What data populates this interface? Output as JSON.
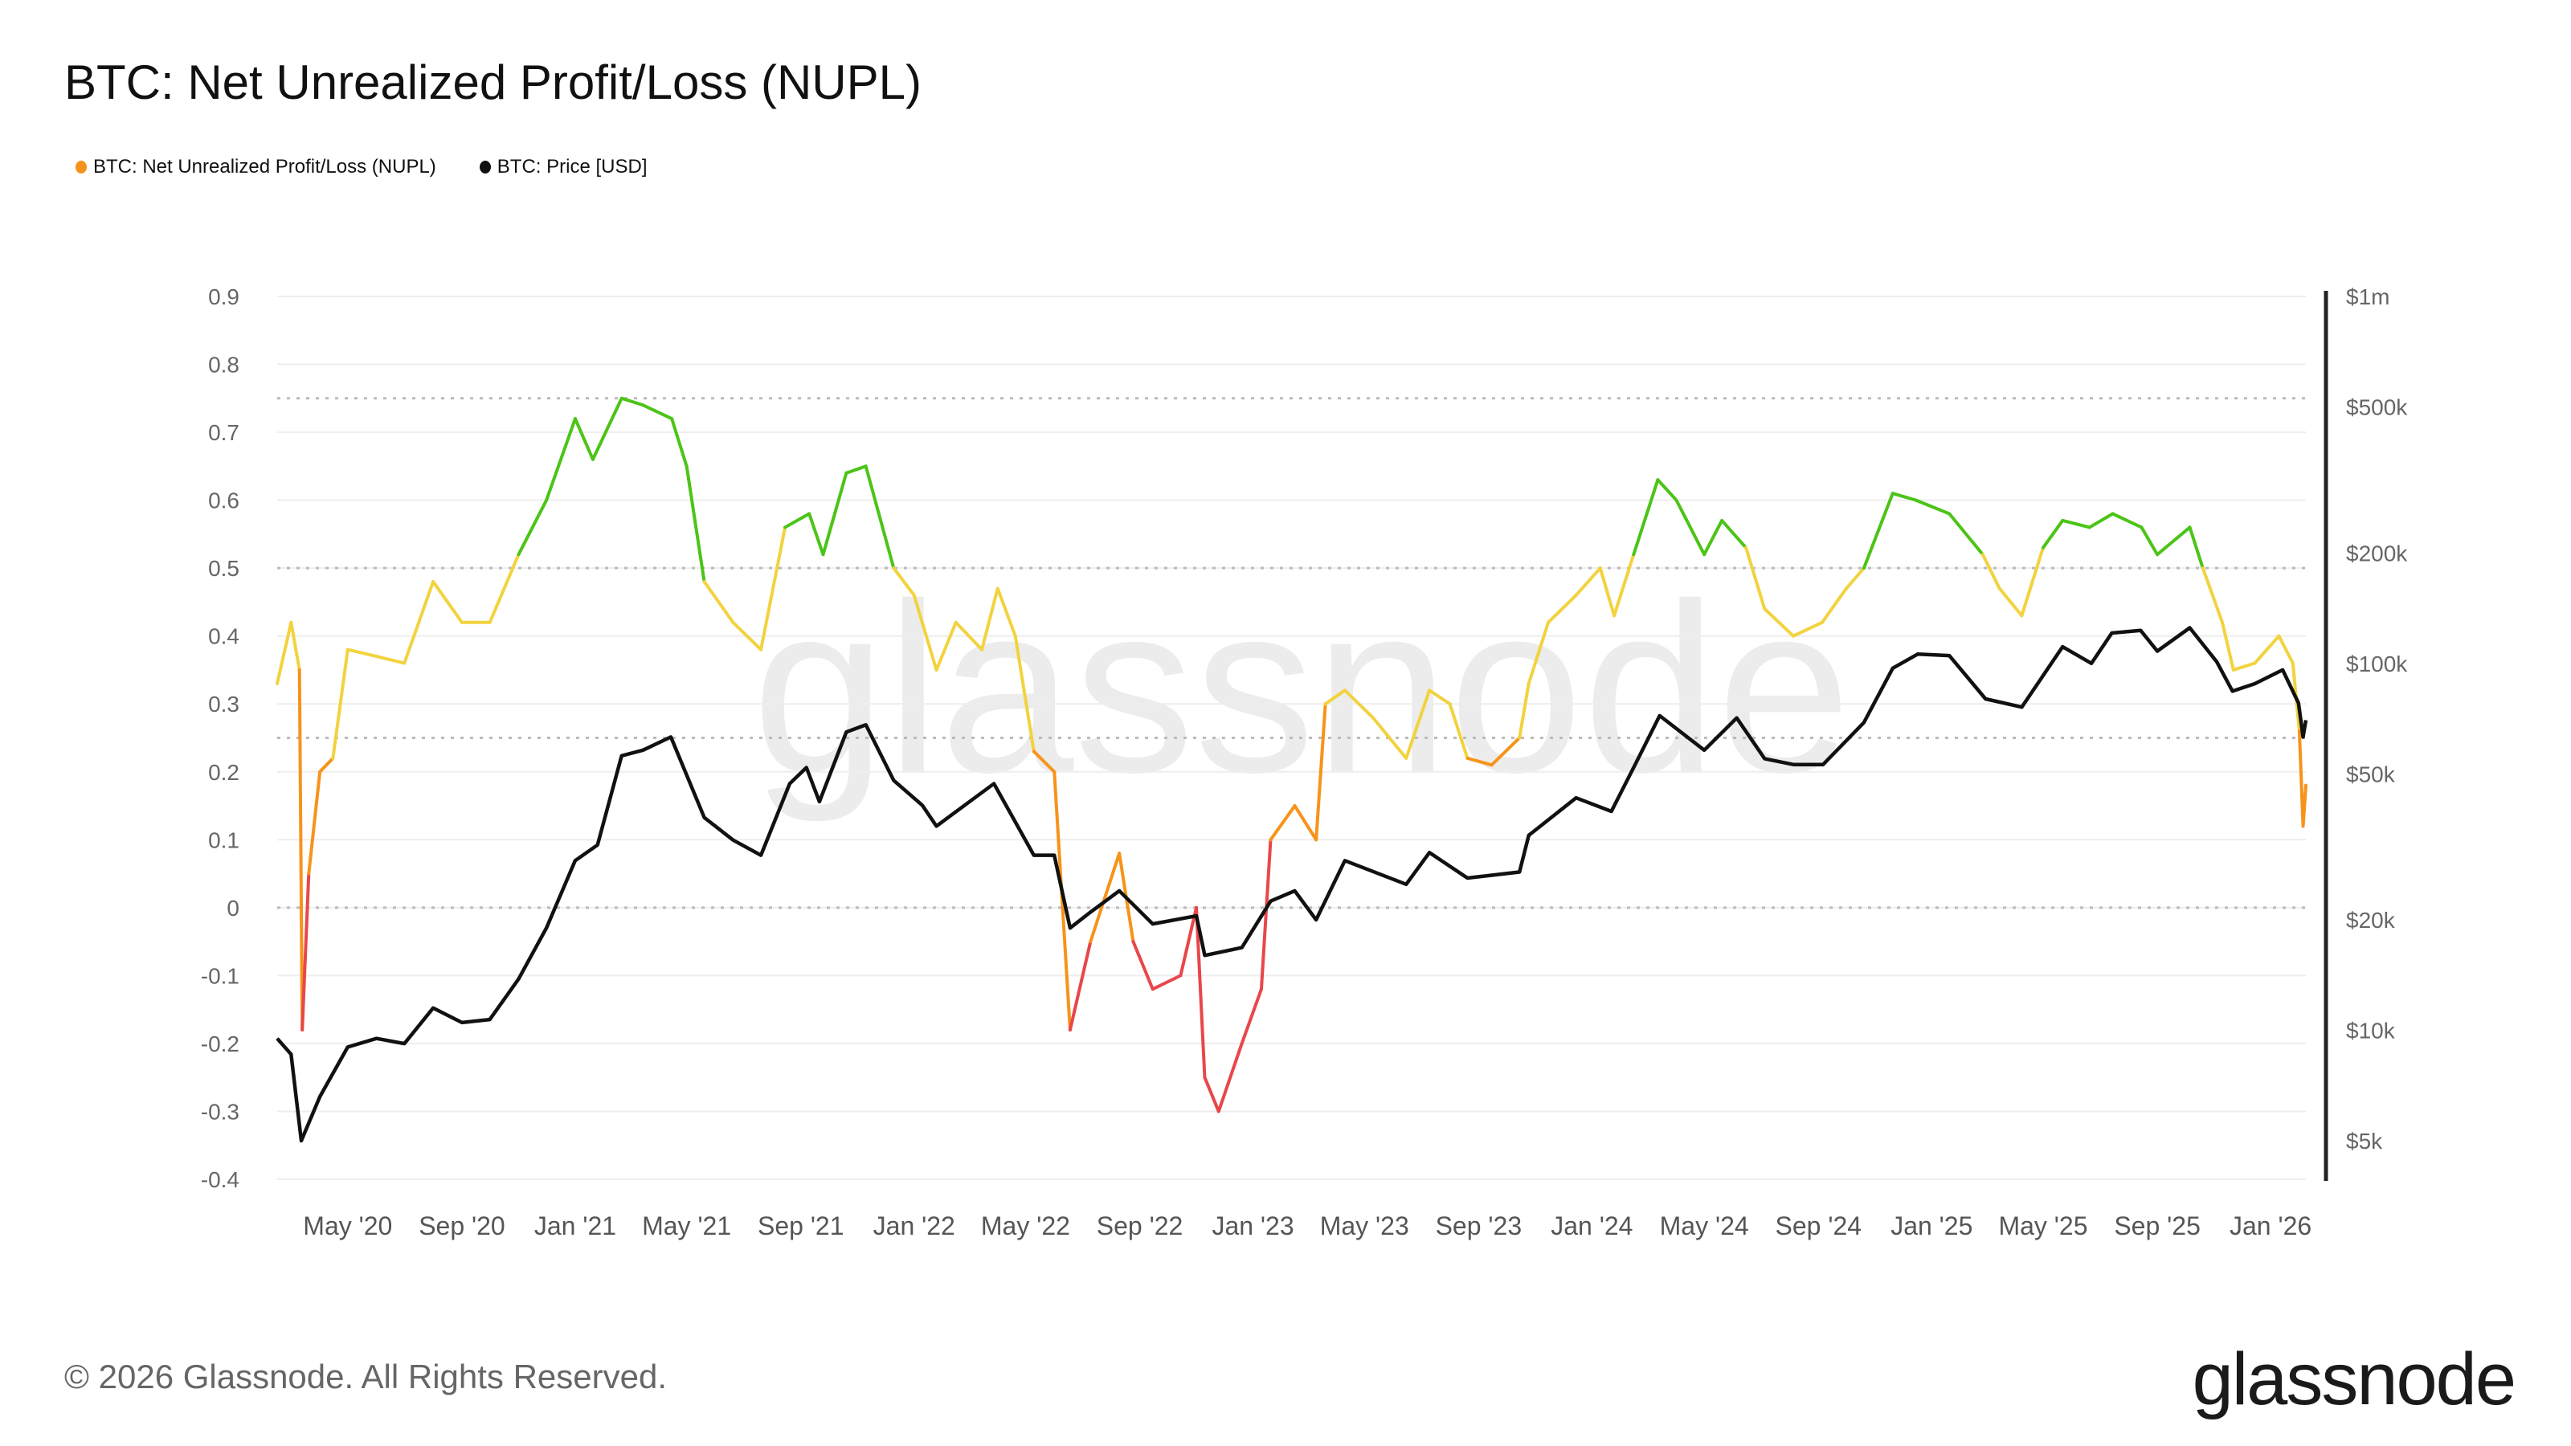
{
  "title": "BTC: Net Unrealized Profit/Loss (NUPL)",
  "legend": [
    {
      "label": "BTC: Net Unrealized Profit/Loss (NUPL)",
      "color": "#f7931a"
    },
    {
      "label": "BTC: Price [USD]",
      "color": "#111111"
    }
  ],
  "footer": "© 2026 Glassnode. All Rights Reserved.",
  "logo": "glassnode",
  "watermark": "glassnode",
  "chart_data": {
    "type": "line",
    "title": "BTC: Net Unrealized Profit/Loss (NUPL)",
    "xlim": [
      "2020-02-15",
      "2026-02-08"
    ],
    "x_ticks": [
      "May '20",
      "Sep '20",
      "Jan '21",
      "May '21",
      "Sep '21",
      "Jan '22",
      "May '22",
      "Sep '22",
      "Jan '23",
      "May '23",
      "Sep '23",
      "Jan '24",
      "May '24",
      "Sep '24",
      "Jan '25",
      "May '25",
      "Sep '25",
      "Jan '26"
    ],
    "x_tick_dates": [
      "2020-05-01",
      "2020-09-01",
      "2021-01-01",
      "2021-05-01",
      "2021-09-01",
      "2022-01-01",
      "2022-05-01",
      "2022-09-01",
      "2023-01-01",
      "2023-05-01",
      "2023-09-01",
      "2024-01-01",
      "2024-05-01",
      "2024-09-01",
      "2025-01-01",
      "2025-05-01",
      "2025-09-01",
      "2026-01-01"
    ],
    "y_left": {
      "ylim": [
        -0.4,
        0.9
      ],
      "ticks": [
        "0.9",
        "0.8",
        "0.7",
        "0.6",
        "0.5",
        "0.4",
        "0.3",
        "0.2",
        "0.1",
        "0",
        "-0.1",
        "-0.2",
        "-0.3",
        "-0.4"
      ],
      "tick_values": [
        0.9,
        0.8,
        0.7,
        0.6,
        0.5,
        0.4,
        0.3,
        0.2,
        0.1,
        0,
        -0.1,
        -0.2,
        -0.3,
        -0.4
      ]
    },
    "y_right": {
      "scale": "log",
      "ylim": [
        4500,
        1000000
      ],
      "ticks": [
        "$1m",
        "$500k",
        "$200k",
        "$100k",
        "$50k",
        "$20k",
        "$10k",
        "$5k"
      ],
      "tick_values": [
        1000000,
        500000,
        200000,
        100000,
        50000,
        20000,
        10000,
        5000
      ]
    },
    "reference_lines": [
      0.75,
      0.5,
      0.25,
      0
    ],
    "grid": true,
    "legend_position": "top-left",
    "zone_colors": {
      "capitulation": "#e8474a",
      "hope_fear": "#f7931a",
      "optimism_anxiety": "#f2d33f",
      "belief_denial": "#4cc417",
      "euphoria_greed": "#3b82f6"
    },
    "series": [
      {
        "name": "BTC: Net Unrealized Profit/Loss (NUPL)",
        "axis": "left",
        "points": [
          [
            "2020-02-15",
            0.33
          ],
          [
            "2020-03-01",
            0.42
          ],
          [
            "2020-03-10",
            0.35
          ],
          [
            "2020-03-13",
            -0.18
          ],
          [
            "2020-03-20",
            0.05
          ],
          [
            "2020-04-01",
            0.2
          ],
          [
            "2020-04-15",
            0.22
          ],
          [
            "2020-05-01",
            0.38
          ],
          [
            "2020-06-01",
            0.37
          ],
          [
            "2020-07-01",
            0.36
          ],
          [
            "2020-08-01",
            0.48
          ],
          [
            "2020-09-01",
            0.42
          ],
          [
            "2020-10-01",
            0.42
          ],
          [
            "2020-11-01",
            0.52
          ],
          [
            "2020-12-01",
            0.6
          ],
          [
            "2021-01-01",
            0.72
          ],
          [
            "2021-01-20",
            0.66
          ],
          [
            "2021-02-20",
            0.75
          ],
          [
            "2021-03-15",
            0.74
          ],
          [
            "2021-04-15",
            0.72
          ],
          [
            "2021-05-01",
            0.65
          ],
          [
            "2021-05-20",
            0.48
          ],
          [
            "2021-06-20",
            0.42
          ],
          [
            "2021-07-20",
            0.38
          ],
          [
            "2021-08-15",
            0.56
          ],
          [
            "2021-09-10",
            0.58
          ],
          [
            "2021-09-25",
            0.52
          ],
          [
            "2021-10-20",
            0.64
          ],
          [
            "2021-11-10",
            0.65
          ],
          [
            "2021-12-10",
            0.5
          ],
          [
            "2022-01-01",
            0.46
          ],
          [
            "2022-01-25",
            0.35
          ],
          [
            "2022-02-15",
            0.42
          ],
          [
            "2022-03-15",
            0.38
          ],
          [
            "2022-04-01",
            0.47
          ],
          [
            "2022-04-20",
            0.4
          ],
          [
            "2022-05-10",
            0.23
          ],
          [
            "2022-06-01",
            0.2
          ],
          [
            "2022-06-18",
            -0.18
          ],
          [
            "2022-07-10",
            -0.05
          ],
          [
            "2022-08-10",
            0.08
          ],
          [
            "2022-08-25",
            -0.05
          ],
          [
            "2022-09-15",
            -0.12
          ],
          [
            "2022-10-15",
            -0.1
          ],
          [
            "2022-11-01",
            0.0
          ],
          [
            "2022-11-10",
            -0.25
          ],
          [
            "2022-11-25",
            -0.3
          ],
          [
            "2022-12-20",
            -0.2
          ],
          [
            "2023-01-10",
            -0.12
          ],
          [
            "2023-01-20",
            0.1
          ],
          [
            "2023-02-15",
            0.15
          ],
          [
            "2023-03-10",
            0.1
          ],
          [
            "2023-03-20",
            0.3
          ],
          [
            "2023-04-10",
            0.32
          ],
          [
            "2023-05-10",
            0.28
          ],
          [
            "2023-06-15",
            0.22
          ],
          [
            "2023-07-10",
            0.32
          ],
          [
            "2023-08-01",
            0.3
          ],
          [
            "2023-08-20",
            0.22
          ],
          [
            "2023-09-15",
            0.21
          ],
          [
            "2023-10-15",
            0.25
          ],
          [
            "2023-10-25",
            0.33
          ],
          [
            "2023-11-15",
            0.42
          ],
          [
            "2023-12-15",
            0.46
          ],
          [
            "2024-01-10",
            0.5
          ],
          [
            "2024-01-25",
            0.43
          ],
          [
            "2024-02-15",
            0.52
          ],
          [
            "2024-03-12",
            0.63
          ],
          [
            "2024-04-01",
            0.6
          ],
          [
            "2024-05-01",
            0.52
          ],
          [
            "2024-05-20",
            0.57
          ],
          [
            "2024-06-15",
            0.53
          ],
          [
            "2024-07-05",
            0.44
          ],
          [
            "2024-08-05",
            0.4
          ],
          [
            "2024-09-05",
            0.42
          ],
          [
            "2024-10-01",
            0.47
          ],
          [
            "2024-10-20",
            0.5
          ],
          [
            "2024-11-20",
            0.61
          ],
          [
            "2024-12-15",
            0.6
          ],
          [
            "2025-01-20",
            0.58
          ],
          [
            "2025-02-25",
            0.52
          ],
          [
            "2025-03-15",
            0.47
          ],
          [
            "2025-04-08",
            0.43
          ],
          [
            "2025-05-01",
            0.53
          ],
          [
            "2025-05-22",
            0.57
          ],
          [
            "2025-06-20",
            0.56
          ],
          [
            "2025-07-15",
            0.58
          ],
          [
            "2025-08-15",
            0.56
          ],
          [
            "2025-09-01",
            0.52
          ],
          [
            "2025-10-06",
            0.56
          ],
          [
            "2025-10-20",
            0.5
          ],
          [
            "2025-11-10",
            0.42
          ],
          [
            "2025-11-22",
            0.35
          ],
          [
            "2025-12-15",
            0.36
          ],
          [
            "2026-01-10",
            0.4
          ],
          [
            "2026-01-25",
            0.36
          ],
          [
            "2026-02-01",
            0.26
          ],
          [
            "2026-02-05",
            0.12
          ],
          [
            "2026-02-08",
            0.18
          ]
        ]
      },
      {
        "name": "BTC: Price [USD]",
        "axis": "right",
        "points": [
          [
            "2020-02-15",
            9500
          ],
          [
            "2020-03-01",
            8600
          ],
          [
            "2020-03-12",
            5000
          ],
          [
            "2020-04-01",
            6600
          ],
          [
            "2020-05-01",
            9000
          ],
          [
            "2020-06-01",
            9500
          ],
          [
            "2020-07-01",
            9200
          ],
          [
            "2020-08-01",
            11500
          ],
          [
            "2020-09-01",
            10500
          ],
          [
            "2020-10-01",
            10700
          ],
          [
            "2020-11-01",
            13800
          ],
          [
            "2020-12-01",
            19000
          ],
          [
            "2021-01-01",
            29000
          ],
          [
            "2021-01-25",
            32000
          ],
          [
            "2021-02-20",
            56000
          ],
          [
            "2021-03-15",
            58000
          ],
          [
            "2021-04-14",
            63000
          ],
          [
            "2021-05-20",
            38000
          ],
          [
            "2021-06-20",
            33000
          ],
          [
            "2021-07-20",
            30000
          ],
          [
            "2021-08-20",
            47000
          ],
          [
            "2021-09-07",
            52000
          ],
          [
            "2021-09-21",
            42000
          ],
          [
            "2021-10-20",
            65000
          ],
          [
            "2021-11-10",
            68000
          ],
          [
            "2021-12-10",
            48000
          ],
          [
            "2022-01-10",
            41000
          ],
          [
            "2022-01-25",
            36000
          ],
          [
            "2022-03-28",
            47000
          ],
          [
            "2022-05-10",
            30000
          ],
          [
            "2022-06-01",
            30000
          ],
          [
            "2022-06-18",
            19000
          ],
          [
            "2022-07-10",
            21000
          ],
          [
            "2022-08-10",
            24000
          ],
          [
            "2022-09-15",
            19500
          ],
          [
            "2022-11-01",
            20500
          ],
          [
            "2022-11-10",
            16000
          ],
          [
            "2022-12-20",
            16800
          ],
          [
            "2023-01-20",
            22500
          ],
          [
            "2023-02-15",
            24000
          ],
          [
            "2023-03-10",
            20000
          ],
          [
            "2023-04-10",
            29000
          ],
          [
            "2023-06-15",
            25000
          ],
          [
            "2023-07-10",
            30500
          ],
          [
            "2023-08-20",
            26000
          ],
          [
            "2023-10-15",
            27000
          ],
          [
            "2023-10-25",
            34000
          ],
          [
            "2023-12-15",
            43000
          ],
          [
            "2024-01-22",
            39500
          ],
          [
            "2024-02-15",
            52000
          ],
          [
            "2024-03-14",
            72000
          ],
          [
            "2024-05-01",
            58000
          ],
          [
            "2024-06-05",
            71000
          ],
          [
            "2024-07-05",
            55000
          ],
          [
            "2024-08-05",
            53000
          ],
          [
            "2024-09-06",
            53000
          ],
          [
            "2024-10-20",
            69000
          ],
          [
            "2024-11-20",
            97000
          ],
          [
            "2024-12-17",
            106000
          ],
          [
            "2025-01-20",
            105000
          ],
          [
            "2025-02-28",
            80000
          ],
          [
            "2025-04-08",
            76000
          ],
          [
            "2025-05-22",
            111000
          ],
          [
            "2025-06-22",
            100000
          ],
          [
            "2025-07-14",
            121000
          ],
          [
            "2025-08-14",
            123000
          ],
          [
            "2025-09-01",
            108000
          ],
          [
            "2025-10-06",
            125000
          ],
          [
            "2025-11-04",
            101000
          ],
          [
            "2025-11-21",
            84000
          ],
          [
            "2025-12-15",
            88000
          ],
          [
            "2026-01-14",
            96000
          ],
          [
            "2026-01-31",
            78000
          ],
          [
            "2026-02-05",
            63000
          ],
          [
            "2026-02-08",
            70000
          ]
        ]
      }
    ]
  }
}
